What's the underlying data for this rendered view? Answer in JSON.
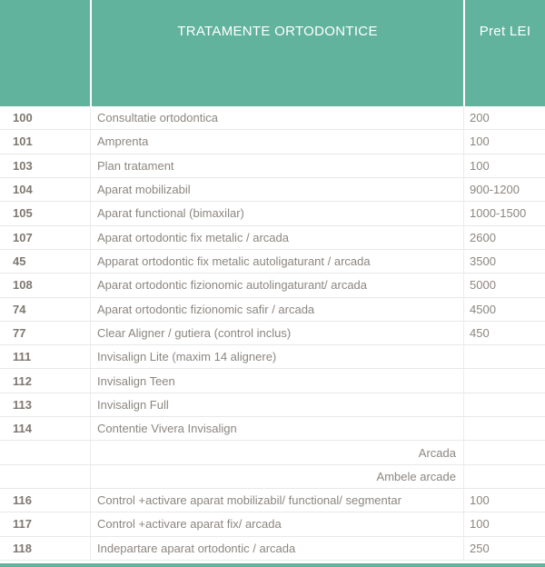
{
  "table": {
    "header": {
      "code_label": "",
      "treatment_label": "TRATAMENTE ORTODONTICE",
      "price_label": "Pret LEI"
    },
    "rows": [
      {
        "code": "100",
        "name": "Consultatie ortodontica",
        "price": "200",
        "align": "left"
      },
      {
        "code": "101",
        "name": "Amprenta",
        "price": "100",
        "align": "left"
      },
      {
        "code": "103",
        "name": "Plan tratament",
        "price": "100",
        "align": "left"
      },
      {
        "code": "104",
        "name": "Aparat mobilizabil",
        "price": "900-1200",
        "align": "left"
      },
      {
        "code": "105",
        "name": "Aparat functional (bimaxilar)",
        "price": "1000-1500",
        "align": "left"
      },
      {
        "code": "107",
        "name": "Aparat ortodontic  fix metalic / arcada",
        "price": "2600",
        "align": "left"
      },
      {
        "code": "45",
        "name": "Apparat ortodontic fix metalic autoligaturant / arcada",
        "price": "3500",
        "align": "left"
      },
      {
        "code": "108",
        "name": "Aparat ortodontic fizionomic autolingaturant/ arcada",
        "price": "5000",
        "align": "left"
      },
      {
        "code": "74",
        "name": "Aparat ortodontic fizionomic safir / arcada",
        "price": "4500",
        "align": "left"
      },
      {
        "code": "77",
        "name": "Clear Aligner / gutiera (control inclus)",
        "price": "450",
        "align": "left"
      },
      {
        "code": "111",
        "name": "Invisalign Lite (maxim 14 alignere)",
        "price": "",
        "align": "left"
      },
      {
        "code": "112",
        "name": "Invisalign Teen",
        "price": "",
        "align": "left"
      },
      {
        "code": "113",
        "name": "Invisalign Full",
        "price": "",
        "align": "left"
      },
      {
        "code": "114",
        "name": "Contentie Vivera Invisalign",
        "price": "",
        "align": "left"
      },
      {
        "code": "",
        "name": "Arcada",
        "price": "",
        "align": "right"
      },
      {
        "code": "",
        "name": "Ambele arcade",
        "price": "",
        "align": "right"
      },
      {
        "code": "116",
        "name": "Control +activare aparat mobilizabil/ functional/ segmentar",
        "price": "100",
        "align": "left"
      },
      {
        "code": "117",
        "name": "Control +activare aparat fix/ arcada",
        "price": "100",
        "align": "left"
      },
      {
        "code": "118",
        "name": "Indepartare aparat ortodontic / arcada",
        "price": "250",
        "align": "left"
      }
    ]
  },
  "colors": {
    "accent_teal": "#62b39e",
    "header_text": "#ffffff",
    "row_text": "#8c8680",
    "code_text": "#7e7870",
    "row_border": "#e8e8e8"
  }
}
